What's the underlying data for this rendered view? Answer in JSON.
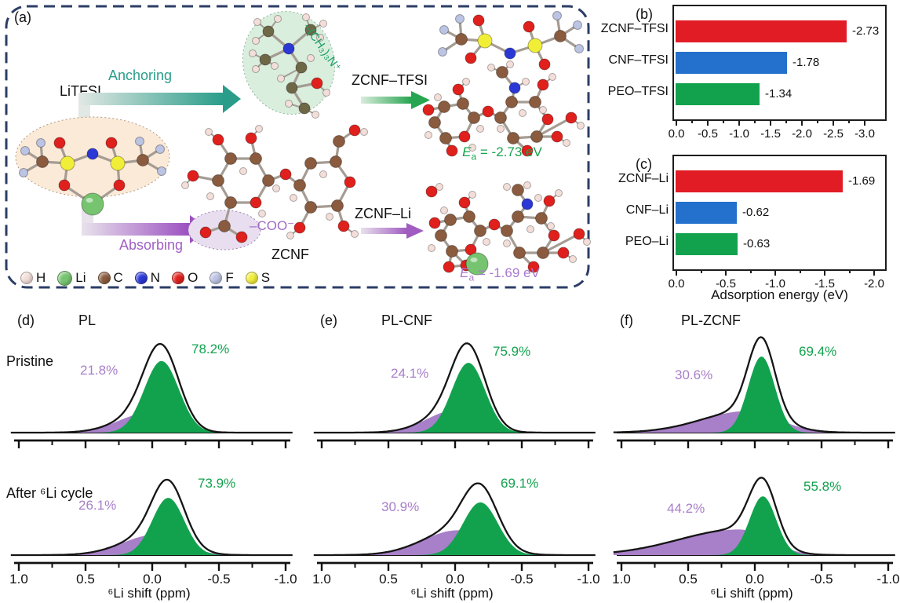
{
  "panel_a": {
    "label": "(a)",
    "litfsi": "LiTFSI",
    "anchoring": "Anchoring",
    "absorbing": "Absorbing",
    "quaternary_ammonium": "–(CH₃)₃N⁺",
    "carboxylate": "–COO⁻",
    "zcnf": "ZCNF",
    "zcnf_tfsi": "ZCNF–TFSI",
    "zcnf_li": "ZCNF–Li",
    "ea_tfsi": {
      "symbol": "E",
      "sub": "a",
      "value": " = -2.73 eV"
    },
    "ea_li": {
      "symbol": "E",
      "sub": "a",
      "value": " = -1.69 eV"
    },
    "colors": {
      "anchoring": "#2a9d8a",
      "absorbing": "#a05fc5",
      "ea_tfsi": "#17a44f",
      "ea_li": "#a879cf",
      "quaternary": "#1fa06a"
    },
    "legend": [
      {
        "symbol": "H",
        "color": "#f3ded9"
      },
      {
        "symbol": "Li",
        "color": "#77c470"
      },
      {
        "symbol": "C",
        "color": "#8a5b3e"
      },
      {
        "symbol": "N",
        "color": "#2b38d6"
      },
      {
        "symbol": "O",
        "color": "#e0201c"
      },
      {
        "symbol": "F",
        "color": "#bcc4e4"
      },
      {
        "symbol": "S",
        "color": "#f1ee38"
      }
    ]
  },
  "chart_data": [
    {
      "id": "b",
      "type": "bar",
      "orientation": "horizontal",
      "panel_label": "(b)",
      "categories": [
        "ZCNF–TFSI",
        "CNF–TFSI",
        "PEO–TFSI"
      ],
      "values": [
        -2.73,
        -1.78,
        -1.34
      ],
      "value_labels": [
        "-2.73",
        "-1.78",
        "-1.34"
      ],
      "bar_colors": [
        "#e11c25",
        "#2470cd",
        "#12a24e"
      ],
      "xticks": [
        "0.0",
        "-0.5",
        "-1.0",
        "-1.5",
        "-2.0",
        "-2.5",
        "-3.0"
      ],
      "xlim": [
        0,
        -3.4
      ],
      "xlabel": ""
    },
    {
      "id": "c",
      "type": "bar",
      "orientation": "horizontal",
      "panel_label": "(c)",
      "categories": [
        "ZCNF–Li",
        "CNF–Li",
        "PEO–Li"
      ],
      "values": [
        -1.69,
        -0.62,
        -0.63
      ],
      "value_labels": [
        "-1.69",
        "-0.62",
        "-0.63"
      ],
      "bar_colors": [
        "#e11c25",
        "#2470cd",
        "#12a24e"
      ],
      "xticks": [
        "0.0",
        "-0.5",
        "-1.0",
        "-1.5",
        "-2.0"
      ],
      "xlim": [
        0,
        -2.15
      ],
      "xlabel": "Adsorption energy (eV)"
    },
    {
      "id": "d",
      "type": "area",
      "panel_label": "(d)",
      "title": "PL",
      "xlabel": "⁶Li shift (ppm)",
      "xticks": [
        "1.0",
        "0.5",
        "0.0",
        "-0.5",
        "-1.0"
      ],
      "xlim": [
        1.0,
        -1.0
      ],
      "colors": {
        "green": "#12a24e",
        "purple": "#a87fc9",
        "outline": "#151515"
      },
      "rows": [
        {
          "label": "Pristine",
          "green": {
            "pct": "78.2%",
            "center": -0.07,
            "sigma": 0.13,
            "amp": 0.8
          },
          "purple": {
            "pct": "21.8%",
            "center": 0.03,
            "sigma_l": 0.22,
            "sigma_r": 0.18,
            "amp": 0.22
          }
        },
        {
          "label": "After ⁶Li cycle",
          "green": {
            "pct": "73.9%",
            "center": -0.12,
            "sigma": 0.12,
            "amp": 0.76
          },
          "purple": {
            "pct": "26.1%",
            "center": -0.02,
            "sigma_l": 0.24,
            "sigma_r": 0.2,
            "amp": 0.27
          }
        }
      ]
    },
    {
      "id": "e",
      "type": "area",
      "panel_label": "(e)",
      "title": "PL-CNF",
      "xlabel": "⁶Li shift (ppm)",
      "xticks": [
        "1.0",
        "0.5",
        "0.0",
        "-0.5",
        "-1.0"
      ],
      "xlim": [
        1.0,
        -1.0
      ],
      "colors": {
        "green": "#12a24e",
        "purple": "#a87fc9",
        "outline": "#151515"
      },
      "rows": [
        {
          "label": "Pristine",
          "green": {
            "pct": "75.9%",
            "center": -0.1,
            "sigma": 0.125,
            "amp": 0.78
          },
          "purple": {
            "pct": "24.1%",
            "center": 0.0,
            "sigma_l": 0.21,
            "sigma_r": 0.18,
            "amp": 0.25
          }
        },
        {
          "label": "After ⁶Li cycle",
          "green": {
            "pct": "69.1%",
            "center": -0.19,
            "sigma": 0.13,
            "amp": 0.7
          },
          "purple": {
            "pct": "30.9%",
            "center": -0.02,
            "sigma_l": 0.26,
            "sigma_r": 0.22,
            "amp": 0.33
          }
        }
      ]
    },
    {
      "id": "f",
      "type": "area",
      "panel_label": "(f)",
      "title": "PL-ZCNF",
      "xlabel": "⁶Li shift (ppm)",
      "xticks": [
        "1.0",
        "0.5",
        "0.0",
        "-0.5",
        "-1.0"
      ],
      "xlim": [
        1.0,
        -1.0
      ],
      "colors": {
        "green": "#12a24e",
        "purple": "#a87fc9",
        "outline": "#151515"
      },
      "rows": [
        {
          "label": "Pristine",
          "green": {
            "pct": "69.4%",
            "center": -0.05,
            "sigma": 0.1,
            "amp": 0.85
          },
          "purple": {
            "pct": "30.6%",
            "center": 0.06,
            "sigma_l": 0.34,
            "sigma_r": 0.24,
            "amp": 0.24
          }
        },
        {
          "label": "After ⁶Li cycle",
          "green": {
            "pct": "55.8%",
            "center": -0.06,
            "sigma": 0.1,
            "amp": 0.78
          },
          "purple": {
            "pct": "44.2%",
            "center": 0.12,
            "sigma_l": 0.45,
            "sigma_r": 0.22,
            "amp": 0.34
          }
        }
      ]
    }
  ]
}
